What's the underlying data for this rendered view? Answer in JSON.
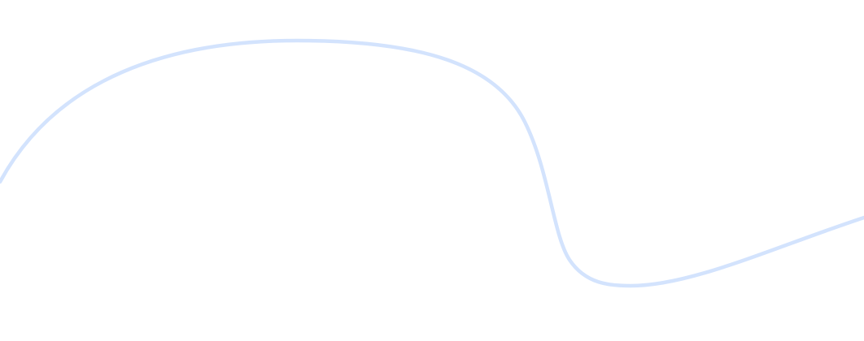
{
  "background_color": "#ffffff",
  "decoration": {
    "type": "wave-curve",
    "stroke_color": "#d3e3fd"
  }
}
